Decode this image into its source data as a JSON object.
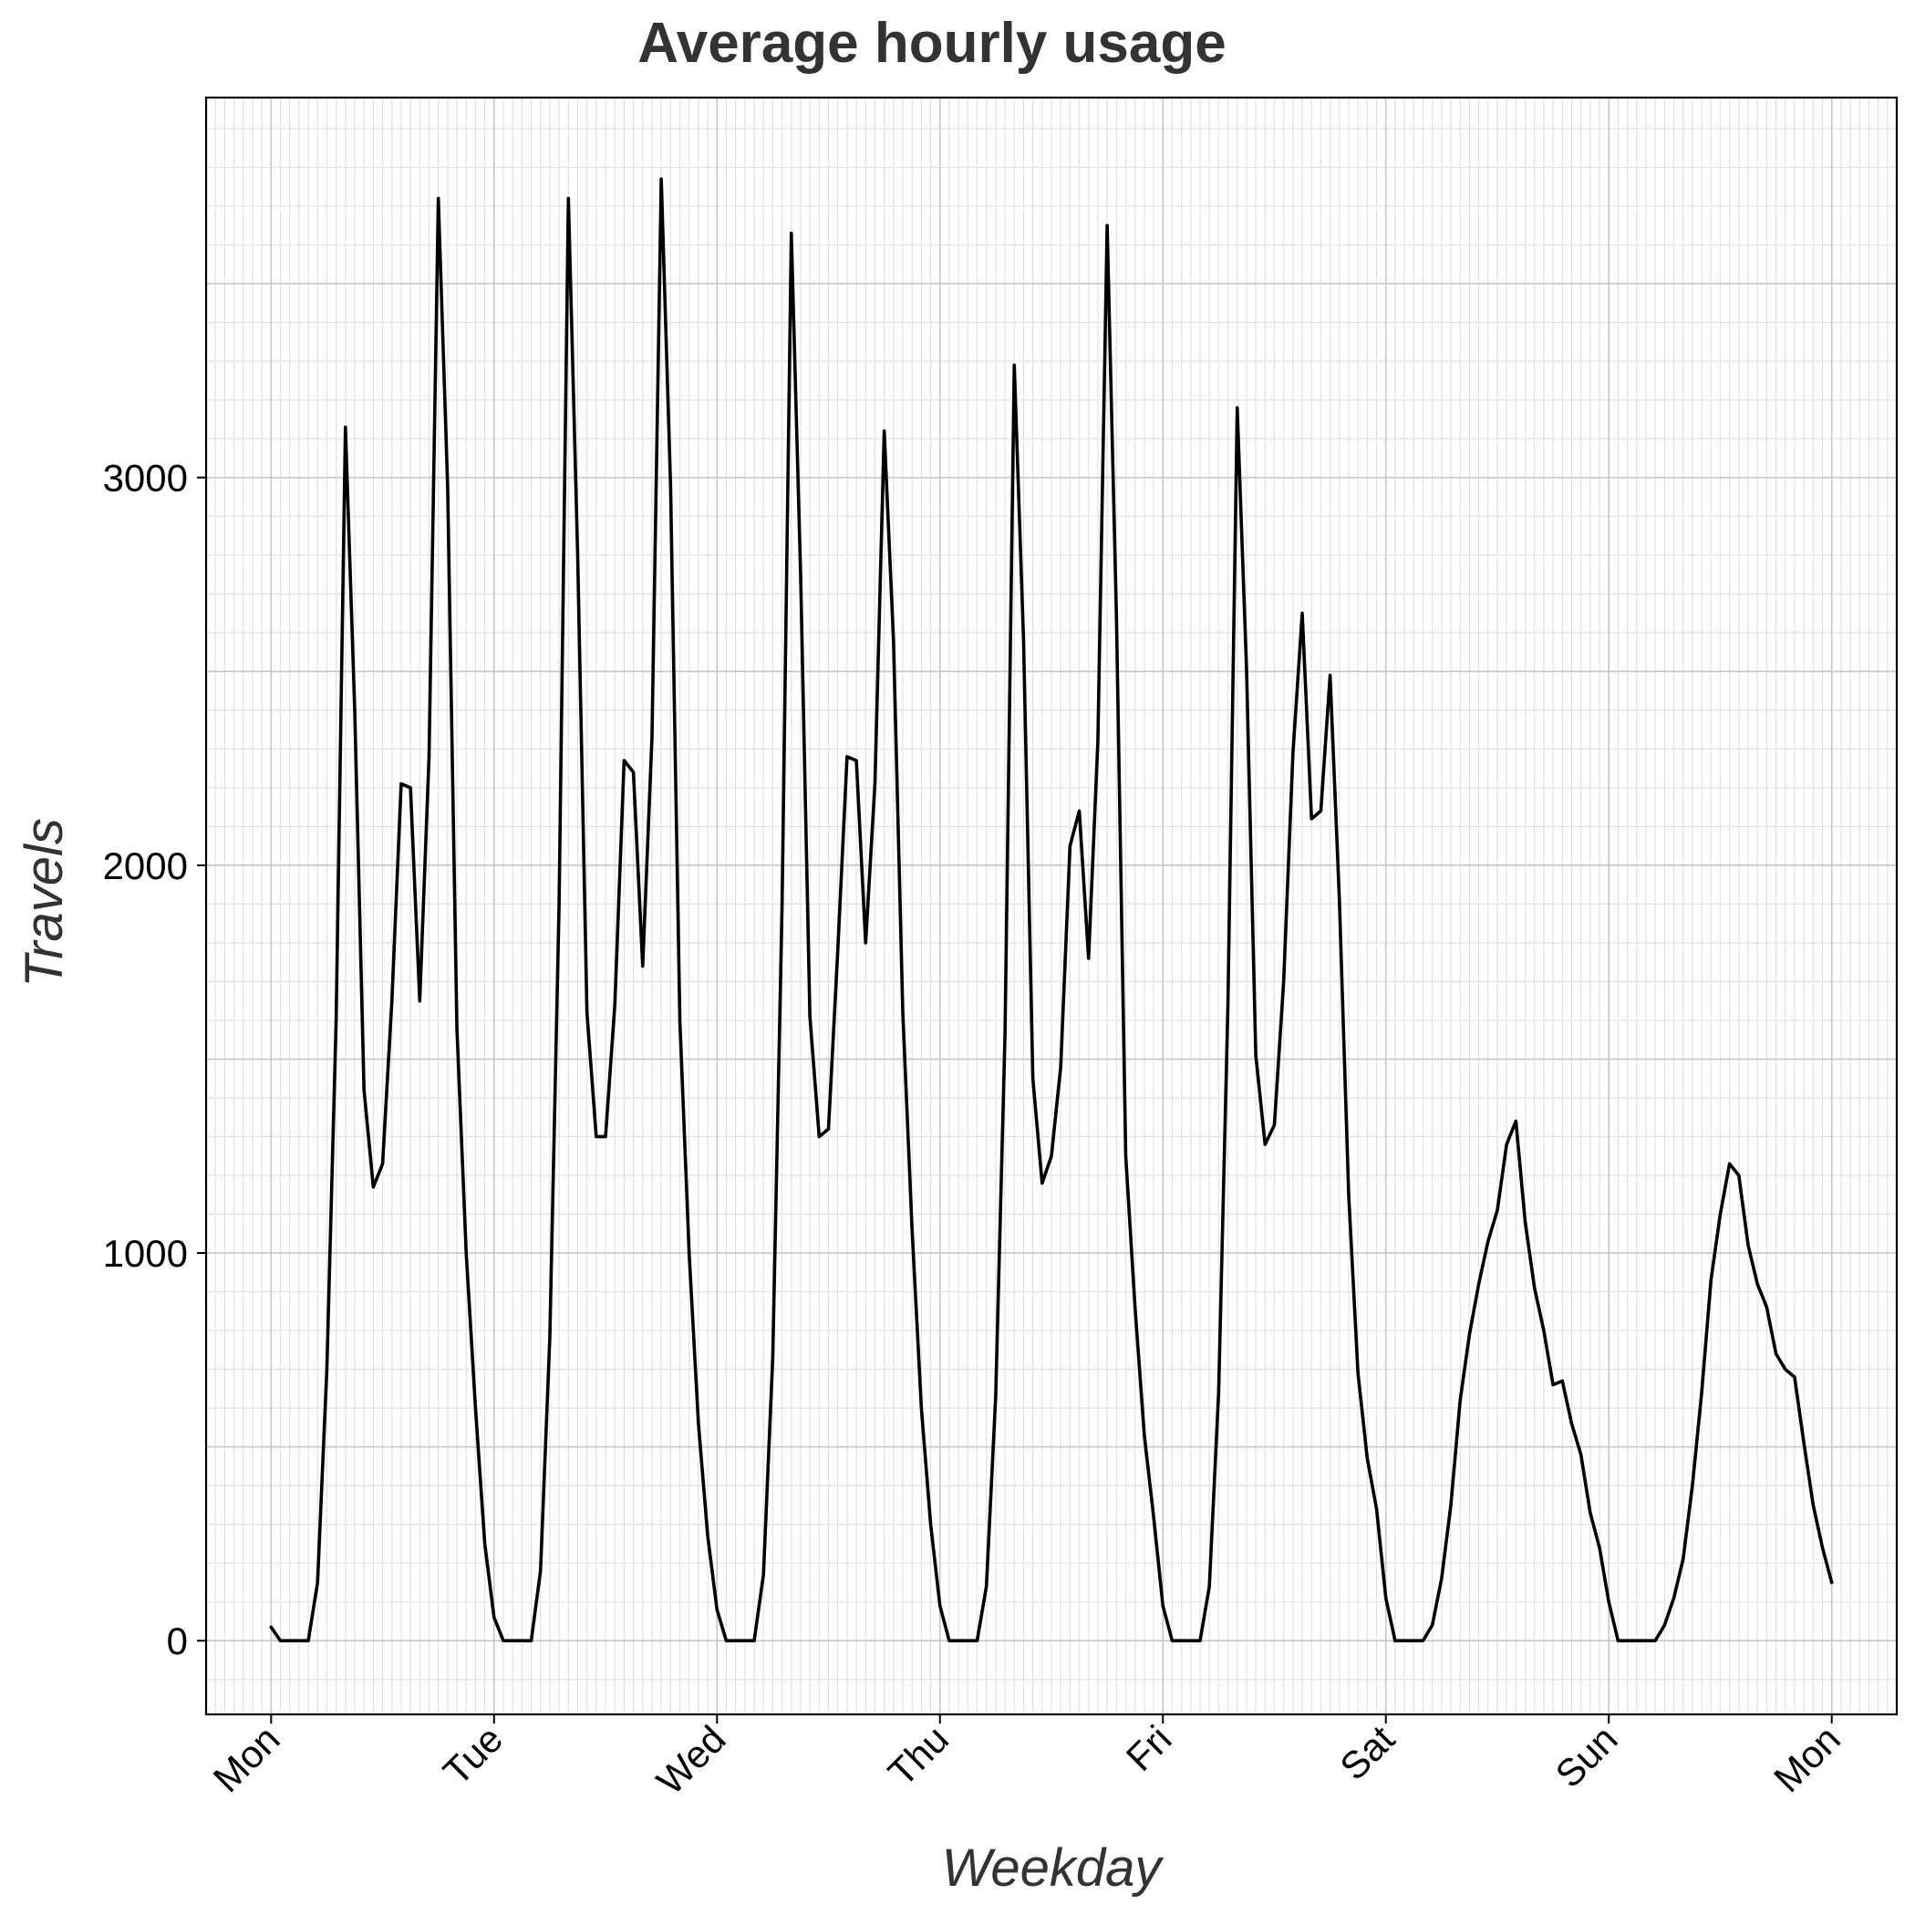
{
  "chart_data": {
    "type": "line",
    "title": "Average hourly usage",
    "xlabel": "Weekday",
    "ylabel": "Travels",
    "x_unit": "hours since Monday 00:00",
    "xlim": [
      -7,
      175
    ],
    "ylim": [
      -190,
      3980
    ],
    "x_ticks": [
      {
        "value": 0,
        "label": "Mon"
      },
      {
        "value": 24,
        "label": "Tue"
      },
      {
        "value": 48,
        "label": "Wed"
      },
      {
        "value": 72,
        "label": "Thu"
      },
      {
        "value": 96,
        "label": "Fri"
      },
      {
        "value": 120,
        "label": "Sat"
      },
      {
        "value": 144,
        "label": "Sun"
      },
      {
        "value": 168,
        "label": "Mon"
      }
    ],
    "y_ticks": [
      {
        "value": 0,
        "label": "0"
      },
      {
        "value": 1000,
        "label": "1000"
      },
      {
        "value": 2000,
        "label": "2000"
      },
      {
        "value": 3000,
        "label": "3000"
      }
    ],
    "grid": true,
    "colors": {
      "line": "#000000",
      "frame": "#000000",
      "major_grid": "#c6c6c6",
      "minor_grid": "#e2e2e2"
    },
    "series": [
      {
        "name": "",
        "values": [
          35,
          0,
          0,
          0,
          0,
          150,
          700,
          1600,
          3130,
          2400,
          1420,
          1170,
          1230,
          1650,
          2210,
          2200,
          1650,
          2280,
          3720,
          2980,
          1580,
          1000,
          600,
          250,
          60,
          0,
          0,
          0,
          0,
          180,
          780,
          1900,
          3720,
          2800,
          1620,
          1300,
          1300,
          1640,
          2270,
          2240,
          1740,
          2330,
          3770,
          2980,
          1600,
          1000,
          560,
          270,
          80,
          0,
          0,
          0,
          0,
          170,
          730,
          1890,
          3630,
          2750,
          1610,
          1300,
          1320,
          1780,
          2280,
          2270,
          1800,
          2210,
          3120,
          2580,
          1620,
          1060,
          600,
          300,
          90,
          0,
          0,
          0,
          0,
          140,
          630,
          1560,
          3290,
          2580,
          1450,
          1180,
          1250,
          1480,
          2050,
          2140,
          1760,
          2320,
          3650,
          2640,
          1250,
          860,
          530,
          320,
          90,
          0,
          0,
          0,
          0,
          140,
          640,
          1640,
          3180,
          2510,
          1510,
          1280,
          1330,
          1700,
          2290,
          2650,
          2120,
          2140,
          2490,
          1910,
          1150,
          690,
          470,
          340,
          110,
          0,
          0,
          0,
          0,
          40,
          160,
          350,
          620,
          790,
          920,
          1030,
          1110,
          1280,
          1340,
          1080,
          910,
          800,
          660,
          670,
          560,
          480,
          330,
          240,
          100,
          0,
          0,
          0,
          0,
          0,
          40,
          110,
          210,
          400,
          640,
          930,
          1100,
          1230,
          1200,
          1020,
          920,
          860,
          740,
          700,
          680,
          510,
          350,
          240,
          150
        ]
      }
    ]
  }
}
